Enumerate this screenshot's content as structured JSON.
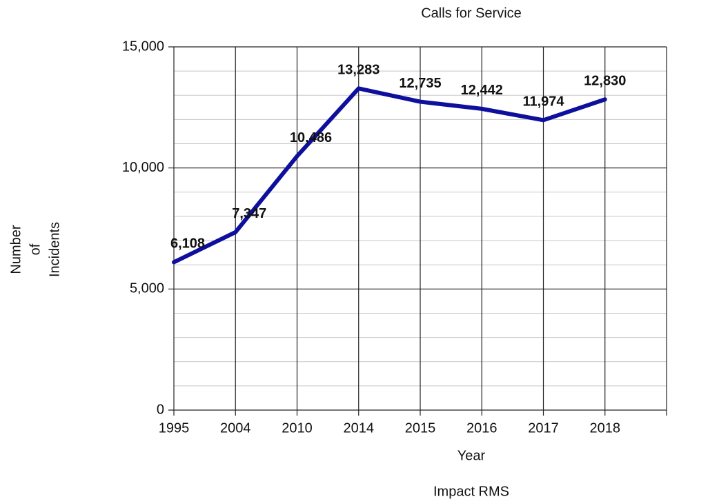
{
  "chart_data": {
    "type": "line",
    "title": "Calls for Service",
    "xlabel": "Year",
    "ylabel": [
      "Number",
      "of",
      "Incidents"
    ],
    "footnote": "Impact RMS",
    "categories": [
      "1995",
      "2004",
      "2010",
      "2014",
      "2015",
      "2016",
      "2017",
      "2018",
      null
    ],
    "values": [
      6108,
      7347,
      10486,
      13283,
      12735,
      12442,
      11974,
      12830,
      null
    ],
    "value_labels": [
      "6,108",
      "7,347",
      "10,486",
      "13,283",
      "12,735",
      "12,442",
      "11,974",
      "12,830",
      null
    ],
    "color": "#0f0f9e",
    "ylim": [
      0,
      15000
    ],
    "yticks": [
      0,
      {
        "value": 5000,
        "label": "5,000"
      },
      {
        "value": 10000,
        "label": "10,000"
      },
      {
        "value": 15000,
        "label": "15,000"
      }
    ],
    "grid": true
  }
}
